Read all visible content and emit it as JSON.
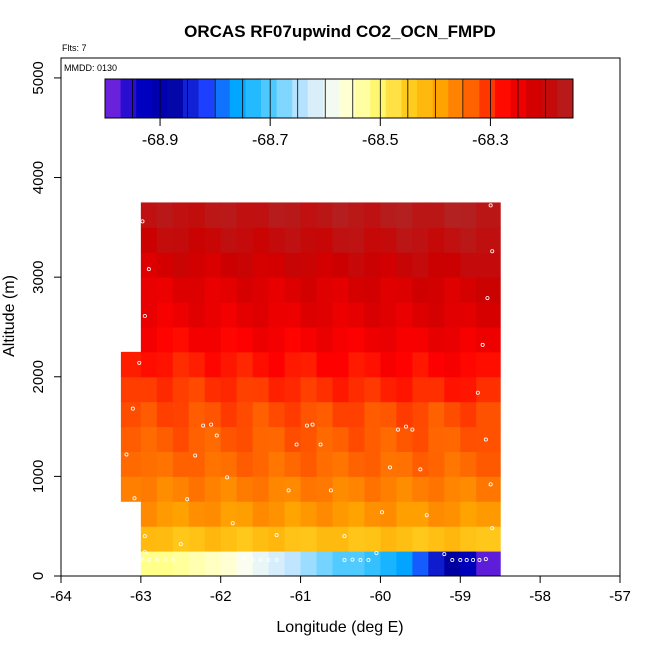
{
  "chart_data": {
    "type": "heatmap",
    "title": "ORCAS RF07upwind CO2_OCN_FMPD",
    "note_flts": "Flts: 7",
    "note_mmdd": "MMDD: 0130",
    "xlabel": "Longitude (deg E)",
    "ylabel": "Altitude (m)",
    "xlim": [
      -64,
      -57
    ],
    "ylim": [
      0,
      5200
    ],
    "x_ticks": [
      "-64",
      "-63",
      "-62",
      "-61",
      "-60",
      "-59",
      "-58",
      "-57"
    ],
    "y_ticks": [
      "0",
      "1000",
      "2000",
      "3000",
      "4000",
      "5000"
    ],
    "colorbar": {
      "range": [
        -69.0,
        -68.15
      ],
      "tick_labels": [
        "-68.9",
        "-68.7",
        "-68.5",
        "-68.3"
      ],
      "tick_values": [
        -68.9,
        -68.7,
        -68.5,
        -68.3
      ],
      "colors": [
        "#8a2be2",
        "#0000c8",
        "#0000a0",
        "#1e3cff",
        "#00aaff",
        "#55ccff",
        "#c8e8ff",
        "#ffffee",
        "#ffff80",
        "#ffd020",
        "#ffa500",
        "#ff6000",
        "#ff0000",
        "#cc0000",
        "#b22222"
      ]
    },
    "grid": {
      "lon_edges": [
        -63.0,
        -62.8,
        -62.6,
        -62.4,
        -62.2,
        -62.0,
        -61.8,
        -61.6,
        -61.4,
        -61.2,
        -61.0,
        -60.8,
        -60.6,
        -60.4,
        -60.2,
        -60.0,
        -59.8,
        -59.6,
        -59.4,
        -59.2,
        -59.0,
        -58.8,
        -58.5
      ],
      "alt_edges": [
        0,
        250,
        500,
        750,
        1000,
        1250,
        1500,
        1750,
        2000,
        2250,
        2500,
        2750,
        3000,
        3250,
        3500,
        3750
      ],
      "extra_column_lon": [
        -63.25,
        -63.0
      ],
      "extra_column_alt": [
        750,
        2250
      ],
      "row_values": [
        -68.55,
        -68.43,
        -68.38,
        -68.36,
        -68.34,
        -68.33,
        -68.32,
        -68.31,
        -68.29,
        -68.27,
        -68.25,
        -68.24,
        -68.22,
        -68.2,
        -68.18
      ],
      "surface_row_values": [
        -68.52,
        -68.52,
        -68.53,
        -68.54,
        -68.55,
        -68.56,
        -68.58,
        -68.6,
        -68.62,
        -68.64,
        -68.66,
        -68.68,
        -68.7,
        -68.7,
        -68.72,
        -68.74,
        -68.76,
        -68.8,
        -68.85,
        -68.88,
        -68.92,
        -68.98
      ]
    },
    "samples": [
      {
        "lon": -62.98,
        "alt": 3560
      },
      {
        "lon": -62.9,
        "alt": 3080
      },
      {
        "lon": -62.95,
        "alt": 2610
      },
      {
        "lon": -63.02,
        "alt": 2140
      },
      {
        "lon": -63.1,
        "alt": 1680
      },
      {
        "lon": -63.18,
        "alt": 1220
      },
      {
        "lon": -63.08,
        "alt": 780
      },
      {
        "lon": -62.42,
        "alt": 770
      },
      {
        "lon": -62.32,
        "alt": 1210
      },
      {
        "lon": -62.22,
        "alt": 1510
      },
      {
        "lon": -62.12,
        "alt": 1520
      },
      {
        "lon": -62.05,
        "alt": 1410
      },
      {
        "lon": -61.92,
        "alt": 990
      },
      {
        "lon": -61.85,
        "alt": 530
      },
      {
        "lon": -61.3,
        "alt": 410
      },
      {
        "lon": -61.15,
        "alt": 860
      },
      {
        "lon": -61.05,
        "alt": 1320
      },
      {
        "lon": -60.92,
        "alt": 1510
      },
      {
        "lon": -60.85,
        "alt": 1520
      },
      {
        "lon": -60.75,
        "alt": 1320
      },
      {
        "lon": -60.62,
        "alt": 860
      },
      {
        "lon": -60.45,
        "alt": 400
      },
      {
        "lon": -59.98,
        "alt": 640
      },
      {
        "lon": -59.88,
        "alt": 1090
      },
      {
        "lon": -59.78,
        "alt": 1470
      },
      {
        "lon": -59.68,
        "alt": 1500
      },
      {
        "lon": -59.6,
        "alt": 1470
      },
      {
        "lon": -59.5,
        "alt": 1070
      },
      {
        "lon": -59.42,
        "alt": 610
      },
      {
        "lon": -58.78,
        "alt": 1840
      },
      {
        "lon": -58.72,
        "alt": 2320
      },
      {
        "lon": -58.66,
        "alt": 2790
      },
      {
        "lon": -58.6,
        "alt": 3260
      },
      {
        "lon": -58.62,
        "alt": 3720
      },
      {
        "lon": -58.68,
        "alt": 1370
      },
      {
        "lon": -58.62,
        "alt": 920
      },
      {
        "lon": -58.6,
        "alt": 480
      },
      {
        "lon": -62.98,
        "alt": 160
      },
      {
        "lon": -62.9,
        "alt": 165
      },
      {
        "lon": -62.8,
        "alt": 160
      },
      {
        "lon": -62.7,
        "alt": 165
      },
      {
        "lon": -62.6,
        "alt": 160
      },
      {
        "lon": -62.5,
        "alt": 320
      },
      {
        "lon": -61.7,
        "alt": 180
      },
      {
        "lon": -61.6,
        "alt": 160
      },
      {
        "lon": -61.5,
        "alt": 165
      },
      {
        "lon": -61.4,
        "alt": 160
      },
      {
        "lon": -61.3,
        "alt": 160
      },
      {
        "lon": -60.45,
        "alt": 160
      },
      {
        "lon": -60.35,
        "alt": 165
      },
      {
        "lon": -60.25,
        "alt": 160
      },
      {
        "lon": -60.15,
        "alt": 160
      },
      {
        "lon": -60.05,
        "alt": 230
      },
      {
        "lon": -59.2,
        "alt": 220
      },
      {
        "lon": -59.1,
        "alt": 160
      },
      {
        "lon": -59.0,
        "alt": 160
      },
      {
        "lon": -58.92,
        "alt": 160
      },
      {
        "lon": -58.84,
        "alt": 160
      },
      {
        "lon": -58.76,
        "alt": 160
      },
      {
        "lon": -58.68,
        "alt": 170
      },
      {
        "lon": -62.95,
        "alt": 400
      },
      {
        "lon": -62.95,
        "alt": 240
      }
    ]
  }
}
